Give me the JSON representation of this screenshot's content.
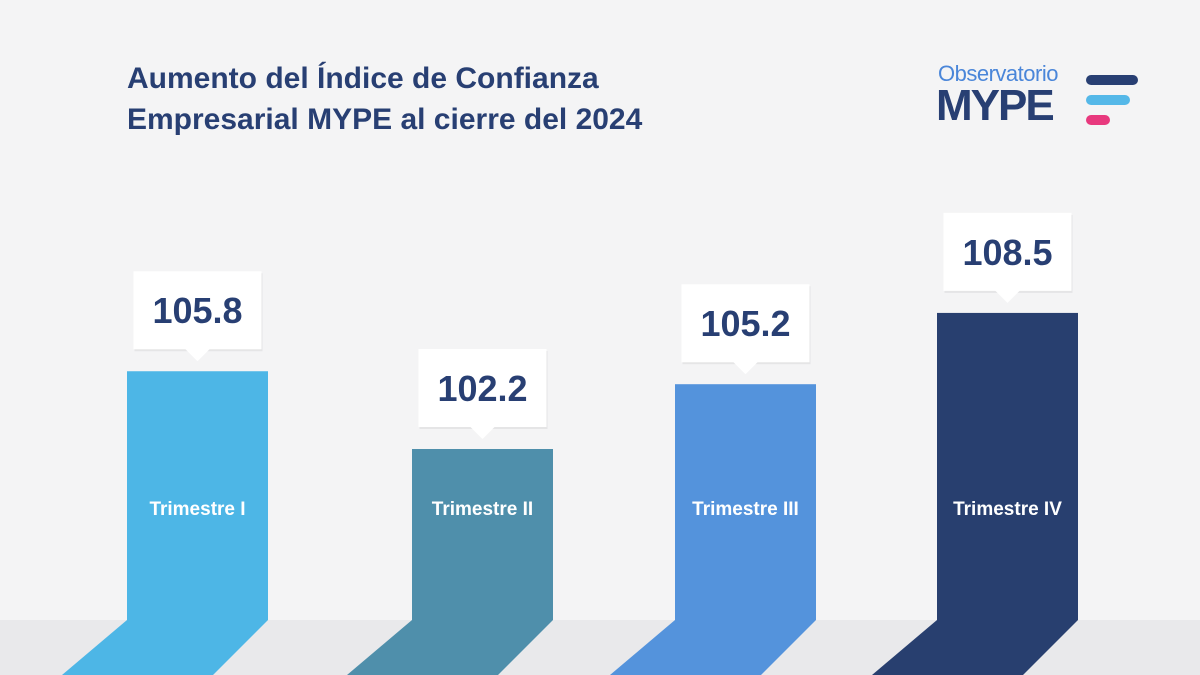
{
  "header": {
    "title_line1": "Aumento del Índice de Confianza",
    "title_line2": "Empresarial MYPE al cierre del 2024"
  },
  "logo": {
    "top_text": "Observatorio",
    "main_text": "MYPE",
    "bar_colors": [
      "#283f73",
      "#55b8e8",
      "#e8397e"
    ]
  },
  "chart_data": {
    "type": "bar",
    "categories": [
      "Trimestre I",
      "Trimestre II",
      "Trimestre III",
      "Trimestre IV"
    ],
    "values": [
      105.8,
      102.2,
      105.2,
      108.5
    ],
    "value_labels": [
      "105.8",
      "102.2",
      "105.2",
      "108.5"
    ],
    "colors": [
      "#4db6e6",
      "#4f8fab",
      "#5493dc",
      "#283f6f"
    ],
    "title": "Aumento del Índice de Confianza Empresarial MYPE al cierre del 2024",
    "grid": false,
    "legend": "none"
  }
}
